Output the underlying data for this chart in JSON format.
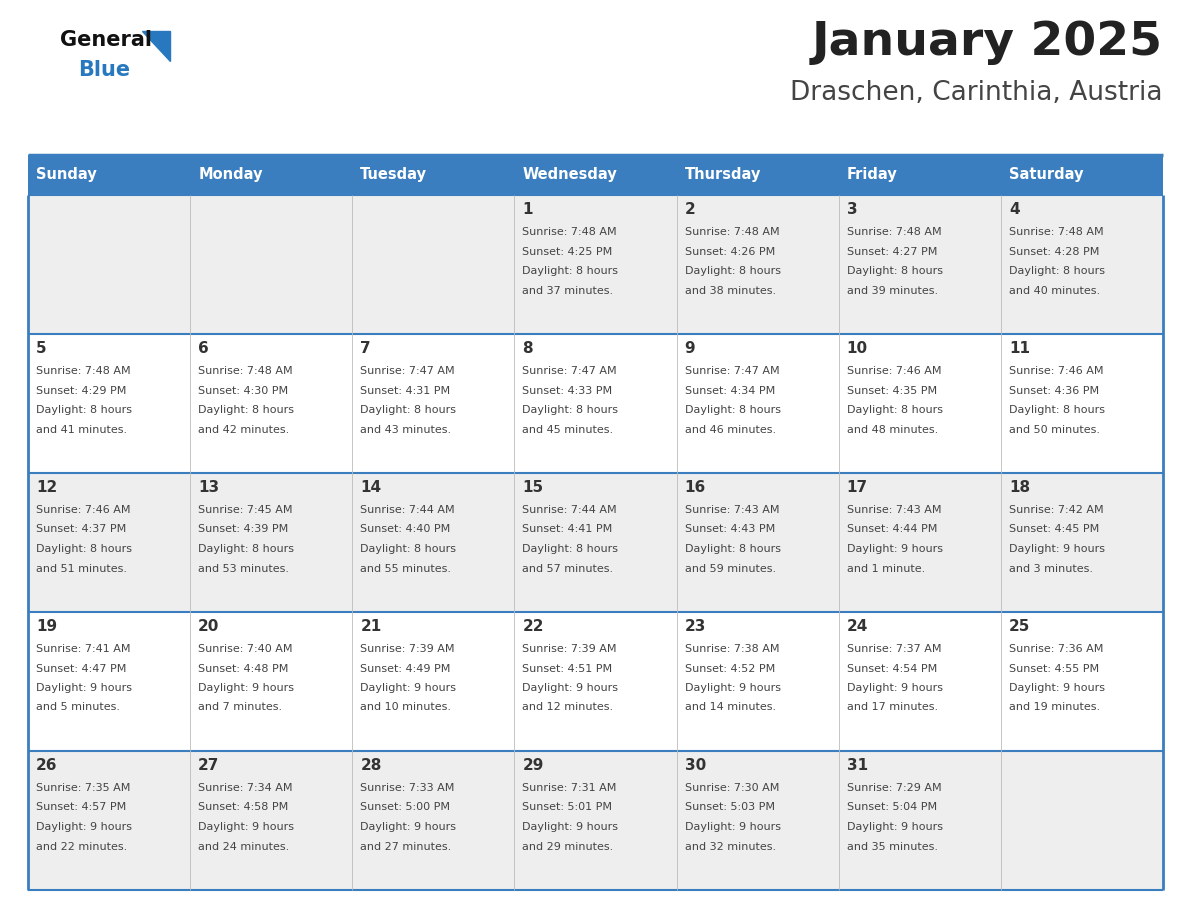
{
  "title": "January 2025",
  "subtitle": "Draschen, Carinthia, Austria",
  "days_of_week": [
    "Sunday",
    "Monday",
    "Tuesday",
    "Wednesday",
    "Thursday",
    "Friday",
    "Saturday"
  ],
  "header_bg": "#3a7ebf",
  "header_text": "#ffffff",
  "row_bg_odd": "#eeeeee",
  "row_bg_even": "#ffffff",
  "border_color": "#3a7ebf",
  "day_num_color": "#333333",
  "cell_text_color": "#444444",
  "title_color": "#222222",
  "subtitle_color": "#444444",
  "logo_general_color": "#111111",
  "logo_blue_color": "#2878c0",
  "logo_triangle_color": "#2878c0",
  "calendar": [
    [
      null,
      null,
      null,
      {
        "day": "1",
        "sunrise": "7:48 AM",
        "sunset": "4:25 PM",
        "daylight_h": "8",
        "daylight_m": "37 minutes"
      },
      {
        "day": "2",
        "sunrise": "7:48 AM",
        "sunset": "4:26 PM",
        "daylight_h": "8",
        "daylight_m": "38 minutes"
      },
      {
        "day": "3",
        "sunrise": "7:48 AM",
        "sunset": "4:27 PM",
        "daylight_h": "8",
        "daylight_m": "39 minutes"
      },
      {
        "day": "4",
        "sunrise": "7:48 AM",
        "sunset": "4:28 PM",
        "daylight_h": "8",
        "daylight_m": "40 minutes"
      }
    ],
    [
      {
        "day": "5",
        "sunrise": "7:48 AM",
        "sunset": "4:29 PM",
        "daylight_h": "8",
        "daylight_m": "41 minutes"
      },
      {
        "day": "6",
        "sunrise": "7:48 AM",
        "sunset": "4:30 PM",
        "daylight_h": "8",
        "daylight_m": "42 minutes"
      },
      {
        "day": "7",
        "sunrise": "7:47 AM",
        "sunset": "4:31 PM",
        "daylight_h": "8",
        "daylight_m": "43 minutes"
      },
      {
        "day": "8",
        "sunrise": "7:47 AM",
        "sunset": "4:33 PM",
        "daylight_h": "8",
        "daylight_m": "45 minutes"
      },
      {
        "day": "9",
        "sunrise": "7:47 AM",
        "sunset": "4:34 PM",
        "daylight_h": "8",
        "daylight_m": "46 minutes"
      },
      {
        "day": "10",
        "sunrise": "7:46 AM",
        "sunset": "4:35 PM",
        "daylight_h": "8",
        "daylight_m": "48 minutes"
      },
      {
        "day": "11",
        "sunrise": "7:46 AM",
        "sunset": "4:36 PM",
        "daylight_h": "8",
        "daylight_m": "50 minutes"
      }
    ],
    [
      {
        "day": "12",
        "sunrise": "7:46 AM",
        "sunset": "4:37 PM",
        "daylight_h": "8",
        "daylight_m": "51 minutes"
      },
      {
        "day": "13",
        "sunrise": "7:45 AM",
        "sunset": "4:39 PM",
        "daylight_h": "8",
        "daylight_m": "53 minutes"
      },
      {
        "day": "14",
        "sunrise": "7:44 AM",
        "sunset": "4:40 PM",
        "daylight_h": "8",
        "daylight_m": "55 minutes"
      },
      {
        "day": "15",
        "sunrise": "7:44 AM",
        "sunset": "4:41 PM",
        "daylight_h": "8",
        "daylight_m": "57 minutes"
      },
      {
        "day": "16",
        "sunrise": "7:43 AM",
        "sunset": "4:43 PM",
        "daylight_h": "8",
        "daylight_m": "59 minutes"
      },
      {
        "day": "17",
        "sunrise": "7:43 AM",
        "sunset": "4:44 PM",
        "daylight_h": "9",
        "daylight_m": "1 minute"
      },
      {
        "day": "18",
        "sunrise": "7:42 AM",
        "sunset": "4:45 PM",
        "daylight_h": "9",
        "daylight_m": "3 minutes"
      }
    ],
    [
      {
        "day": "19",
        "sunrise": "7:41 AM",
        "sunset": "4:47 PM",
        "daylight_h": "9",
        "daylight_m": "5 minutes"
      },
      {
        "day": "20",
        "sunrise": "7:40 AM",
        "sunset": "4:48 PM",
        "daylight_h": "9",
        "daylight_m": "7 minutes"
      },
      {
        "day": "21",
        "sunrise": "7:39 AM",
        "sunset": "4:49 PM",
        "daylight_h": "9",
        "daylight_m": "10 minutes"
      },
      {
        "day": "22",
        "sunrise": "7:39 AM",
        "sunset": "4:51 PM",
        "daylight_h": "9",
        "daylight_m": "12 minutes"
      },
      {
        "day": "23",
        "sunrise": "7:38 AM",
        "sunset": "4:52 PM",
        "daylight_h": "9",
        "daylight_m": "14 minutes"
      },
      {
        "day": "24",
        "sunrise": "7:37 AM",
        "sunset": "4:54 PM",
        "daylight_h": "9",
        "daylight_m": "17 minutes"
      },
      {
        "day": "25",
        "sunrise": "7:36 AM",
        "sunset": "4:55 PM",
        "daylight_h": "9",
        "daylight_m": "19 minutes"
      }
    ],
    [
      {
        "day": "26",
        "sunrise": "7:35 AM",
        "sunset": "4:57 PM",
        "daylight_h": "9",
        "daylight_m": "22 minutes"
      },
      {
        "day": "27",
        "sunrise": "7:34 AM",
        "sunset": "4:58 PM",
        "daylight_h": "9",
        "daylight_m": "24 minutes"
      },
      {
        "day": "28",
        "sunrise": "7:33 AM",
        "sunset": "5:00 PM",
        "daylight_h": "9",
        "daylight_m": "27 minutes"
      },
      {
        "day": "29",
        "sunrise": "7:31 AM",
        "sunset": "5:01 PM",
        "daylight_h": "9",
        "daylight_m": "29 minutes"
      },
      {
        "day": "30",
        "sunrise": "7:30 AM",
        "sunset": "5:03 PM",
        "daylight_h": "9",
        "daylight_m": "32 minutes"
      },
      {
        "day": "31",
        "sunrise": "7:29 AM",
        "sunset": "5:04 PM",
        "daylight_h": "9",
        "daylight_m": "35 minutes"
      },
      null
    ]
  ]
}
